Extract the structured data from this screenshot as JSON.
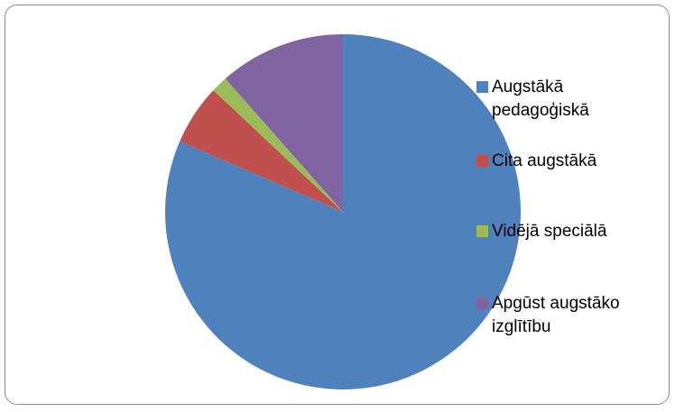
{
  "chart_data": {
    "type": "pie",
    "categories": [
      "Augstākā pedagoģiskā",
      "Cita augstākā",
      "Vidējā speciālā",
      "Apgūst augstāko izglītību"
    ],
    "values": [
      81.5,
      5.5,
      1.5,
      11.5
    ],
    "colors": [
      "#4f81bd",
      "#c0504d",
      "#9bbb59",
      "#8064a2"
    ],
    "legend": "right"
  }
}
